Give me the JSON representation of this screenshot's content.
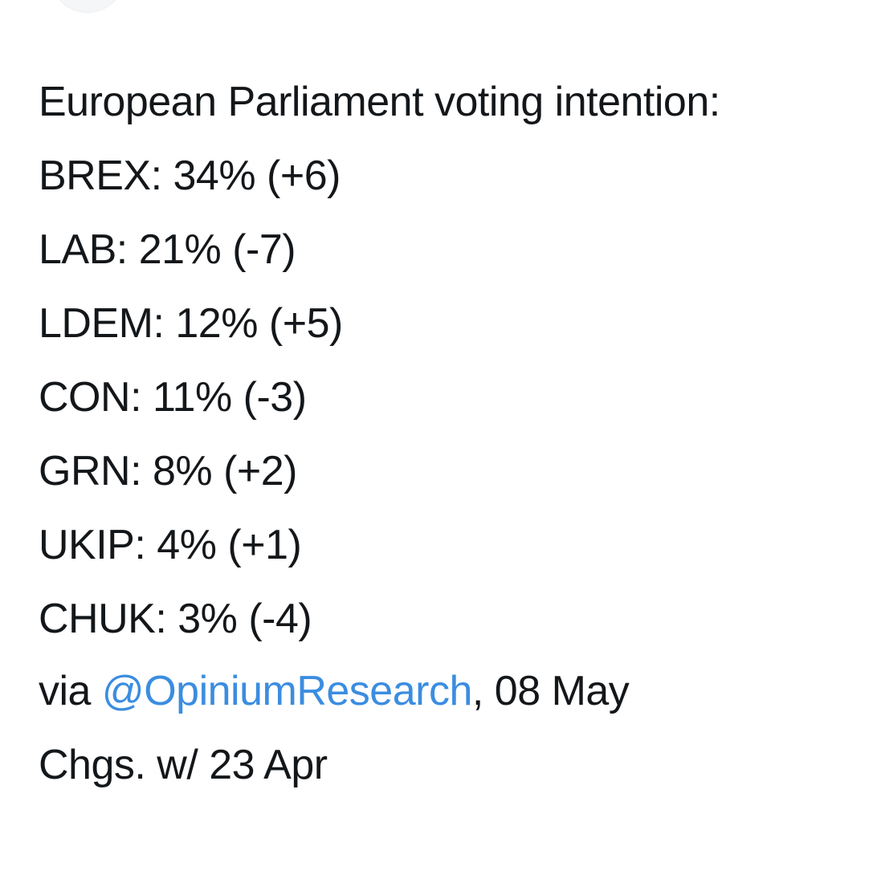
{
  "tweet": {
    "headline": "European Parliament voting intention:",
    "results": [
      {
        "party": "BREX",
        "value": "34%",
        "change": "(+6)"
      },
      {
        "party": "LAB",
        "value": "21%",
        "change": "(-7)"
      },
      {
        "party": "LDEM",
        "value": "12%",
        "change": "(+5)"
      },
      {
        "party": "CON",
        "value": "11%",
        "change": "(-3)"
      },
      {
        "party": "GRN",
        "value": "8%",
        "change": "(+2)"
      },
      {
        "party": "UKIP",
        "value": "4%",
        "change": "(+1)"
      },
      {
        "party": "CHUK",
        "value": "3%",
        "change": "(-4)"
      }
    ],
    "source_prefix": "via ",
    "source_mention": "@OpiniumResearch",
    "source_suffix": ", 08 May",
    "changes_note": "Chgs. w/ 23 Apr"
  },
  "colors": {
    "text": "#14171a",
    "link": "#3b8de0",
    "background": "#ffffff"
  }
}
